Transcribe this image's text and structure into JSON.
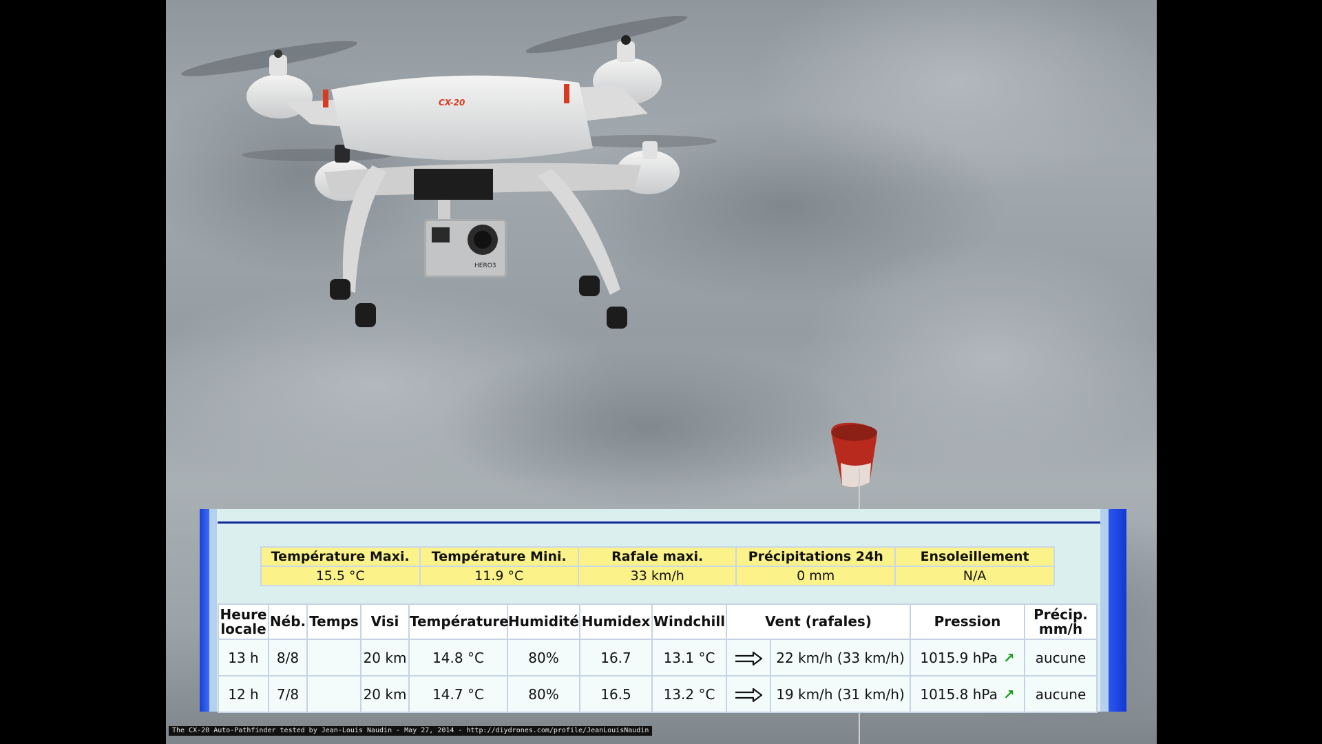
{
  "weather": {
    "summary": {
      "headers": [
        "Température Maxi.",
        "Température Mini.",
        "Rafale maxi.",
        "Précipitations 24h",
        "Ensoleillement"
      ],
      "values": [
        "15.5 °C",
        "11.9 °C",
        "33 km/h",
        "0 mm",
        "N/A"
      ]
    },
    "hourly": {
      "headers": {
        "heure_line1": "Heure",
        "heure_line2": "locale",
        "neb": "Néb.",
        "temps": "Temps",
        "visi": "Visi",
        "temperature": "Température",
        "humidite": "Humidité",
        "humidex": "Humidex",
        "windchill": "Windchill",
        "vent": "Vent (rafales)",
        "pression": "Pression",
        "precip_line1": "Précip.",
        "precip_line2": "mm/h"
      },
      "rows": [
        {
          "heure": "13 h",
          "neb": "8/8",
          "temps": "",
          "visi": "20 km",
          "temperature": "14.8 °C",
          "humidite": "80%",
          "humidex": "16.7",
          "windchill": "13.1 °C",
          "vent": "22 km/h (33 km/h)",
          "pression": "1015.9 hPa",
          "precip": "aucune"
        },
        {
          "heure": "12 h",
          "neb": "7/8",
          "temps": "",
          "visi": "20 km",
          "temperature": "14.7 °C",
          "humidite": "80%",
          "humidex": "16.5",
          "windchill": "13.2 °C",
          "vent": "19 km/h (31 km/h)",
          "pression": "1015.8 hPa",
          "precip": "aucune"
        }
      ]
    }
  },
  "drone": {
    "model_label": "CX-20",
    "camera_label": "HERO3"
  },
  "credit": "The CX-20 Auto-Pathfinder tested by Jean-Louis Naudin - May 27, 2014 - http://diydrones.com/profile/JeanLouisNaudin",
  "icons": {
    "wind_direction": "right-arrow-icon",
    "pressure_trend": "trend-up-arrow-icon"
  },
  "colors": {
    "summary_cell": "#fbf28a",
    "panel_background": "#dcefef",
    "panel_edge": "#1840d8",
    "sky": "#9aa2a7",
    "drone_body": "#e6e6e6",
    "drone_accent": "#d63b22",
    "windsock": "#b82a1e"
  }
}
